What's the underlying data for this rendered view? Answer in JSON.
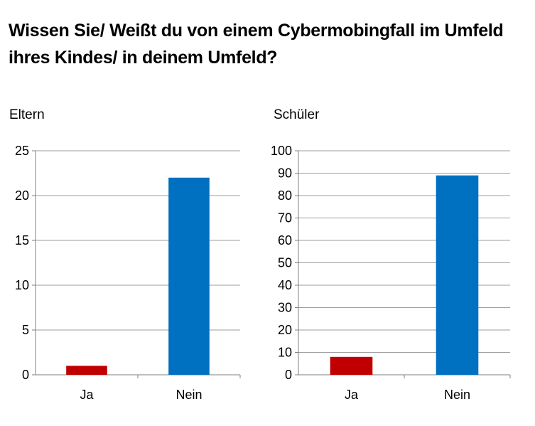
{
  "title": "Wissen Sie/ Weißt du von einem Cybermobingfall im Umfeld ihres Kindes/ in deinem Umfeld?",
  "chart_data": [
    {
      "type": "bar",
      "title": "Eltern",
      "categories": [
        "Ja",
        "Nein"
      ],
      "values": [
        1,
        22
      ],
      "colors": [
        "#c00000",
        "#0070c0"
      ],
      "ylim": [
        0,
        25
      ],
      "yticks": [
        0,
        5,
        10,
        15,
        20,
        25
      ],
      "grid": true,
      "legend": "none"
    },
    {
      "type": "bar",
      "title": "Schüler",
      "categories": [
        "Ja",
        "Nein"
      ],
      "values": [
        8,
        89
      ],
      "colors": [
        "#c00000",
        "#0070c0"
      ],
      "ylim": [
        0,
        100
      ],
      "yticks": [
        0,
        10,
        20,
        30,
        40,
        50,
        60,
        70,
        80,
        90,
        100
      ],
      "grid": true,
      "legend": "none"
    }
  ]
}
